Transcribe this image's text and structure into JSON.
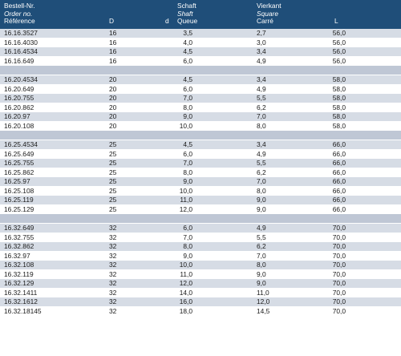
{
  "header": {
    "col_ref": [
      "Bestell-Nr.",
      "Order no.",
      "Référence"
    ],
    "col_D": "D",
    "col_d": "d",
    "col_shaft": [
      "Schaft",
      "Shaft",
      "Queue"
    ],
    "col_square": [
      "Vierkant",
      "Square",
      "Carré"
    ],
    "col_L": "L"
  },
  "colors": {
    "header_bg": "#1f4e79",
    "band_a": "#d6dce5",
    "band_b": "#ffffff",
    "sep": "#bfc7d5"
  },
  "rows": [
    {
      "ref": "16.16.3527",
      "D": "16",
      "d": "3,5",
      "sq": "2,7",
      "L": "56,0"
    },
    {
      "ref": "16.16.4030",
      "D": "16",
      "d": "4,0",
      "sq": "3,0",
      "L": "56,0"
    },
    {
      "ref": "16.16.4534",
      "D": "16",
      "d": "4,5",
      "sq": "3,4",
      "L": "56,0"
    },
    {
      "ref": "16.16.649",
      "D": "16",
      "d": "6,0",
      "sq": "4,9",
      "L": "56,0"
    },
    null,
    {
      "ref": "16.20.4534",
      "D": "20",
      "d": "4,5",
      "sq": "3,4",
      "L": "58,0"
    },
    {
      "ref": "16.20.649",
      "D": "20",
      "d": "6,0",
      "sq": "4,9",
      "L": "58,0"
    },
    {
      "ref": "16.20.755",
      "D": "20",
      "d": "7,0",
      "sq": "5,5",
      "L": "58,0"
    },
    {
      "ref": "16.20.862",
      "D": "20",
      "d": "8,0",
      "sq": "6,2",
      "L": "58,0"
    },
    {
      "ref": "16.20.97",
      "D": "20",
      "d": "9,0",
      "sq": "7,0",
      "L": "58,0"
    },
    {
      "ref": "16.20.108",
      "D": "20",
      "d": "10,0",
      "sq": "8,0",
      "L": "58,0"
    },
    null,
    {
      "ref": "16.25.4534",
      "D": "25",
      "d": "4,5",
      "sq": "3,4",
      "L": "66,0"
    },
    {
      "ref": "16.25.649",
      "D": "25",
      "d": "6,0",
      "sq": "4,9",
      "L": "66,0"
    },
    {
      "ref": "16.25.755",
      "D": "25",
      "d": "7,0",
      "sq": "5,5",
      "L": "66,0"
    },
    {
      "ref": "16.25.862",
      "D": "25",
      "d": "8,0",
      "sq": "6,2",
      "L": "66,0"
    },
    {
      "ref": "16.25.97",
      "D": "25",
      "d": "9,0",
      "sq": "7,0",
      "L": "66,0"
    },
    {
      "ref": "16.25.108",
      "D": "25",
      "d": "10,0",
      "sq": "8,0",
      "L": "66,0"
    },
    {
      "ref": "16.25.119",
      "D": "25",
      "d": "11,0",
      "sq": "9,0",
      "L": "66,0"
    },
    {
      "ref": "16.25.129",
      "D": "25",
      "d": "12,0",
      "sq": "9,0",
      "L": "66,0"
    },
    null,
    {
      "ref": "16.32.649",
      "D": "32",
      "d": "6,0",
      "sq": "4,9",
      "L": "70,0"
    },
    {
      "ref": "16.32.755",
      "D": "32",
      "d": "7,0",
      "sq": "5,5",
      "L": "70,0"
    },
    {
      "ref": "16.32.862",
      "D": "32",
      "d": "8,0",
      "sq": "6,2",
      "L": "70,0"
    },
    {
      "ref": "16.32.97",
      "D": "32",
      "d": "9,0",
      "sq": "7,0",
      "L": "70,0"
    },
    {
      "ref": "16.32.108",
      "D": "32",
      "d": "10,0",
      "sq": "8,0",
      "L": "70,0"
    },
    {
      "ref": "16.32.119",
      "D": "32",
      "d": "11,0",
      "sq": "9,0",
      "L": "70,0"
    },
    {
      "ref": "16.32.129",
      "D": "32",
      "d": "12,0",
      "sq": "9,0",
      "L": "70,0"
    },
    {
      "ref": "16.32.1411",
      "D": "32",
      "d": "14,0",
      "sq": "11,0",
      "L": "70,0"
    },
    {
      "ref": "16.32.1612",
      "D": "32",
      "d": "16,0",
      "sq": "12,0",
      "L": "70,0"
    },
    {
      "ref": "16.32.18145",
      "D": "32",
      "d": "18,0",
      "sq": "14,5",
      "L": "70,0"
    }
  ]
}
